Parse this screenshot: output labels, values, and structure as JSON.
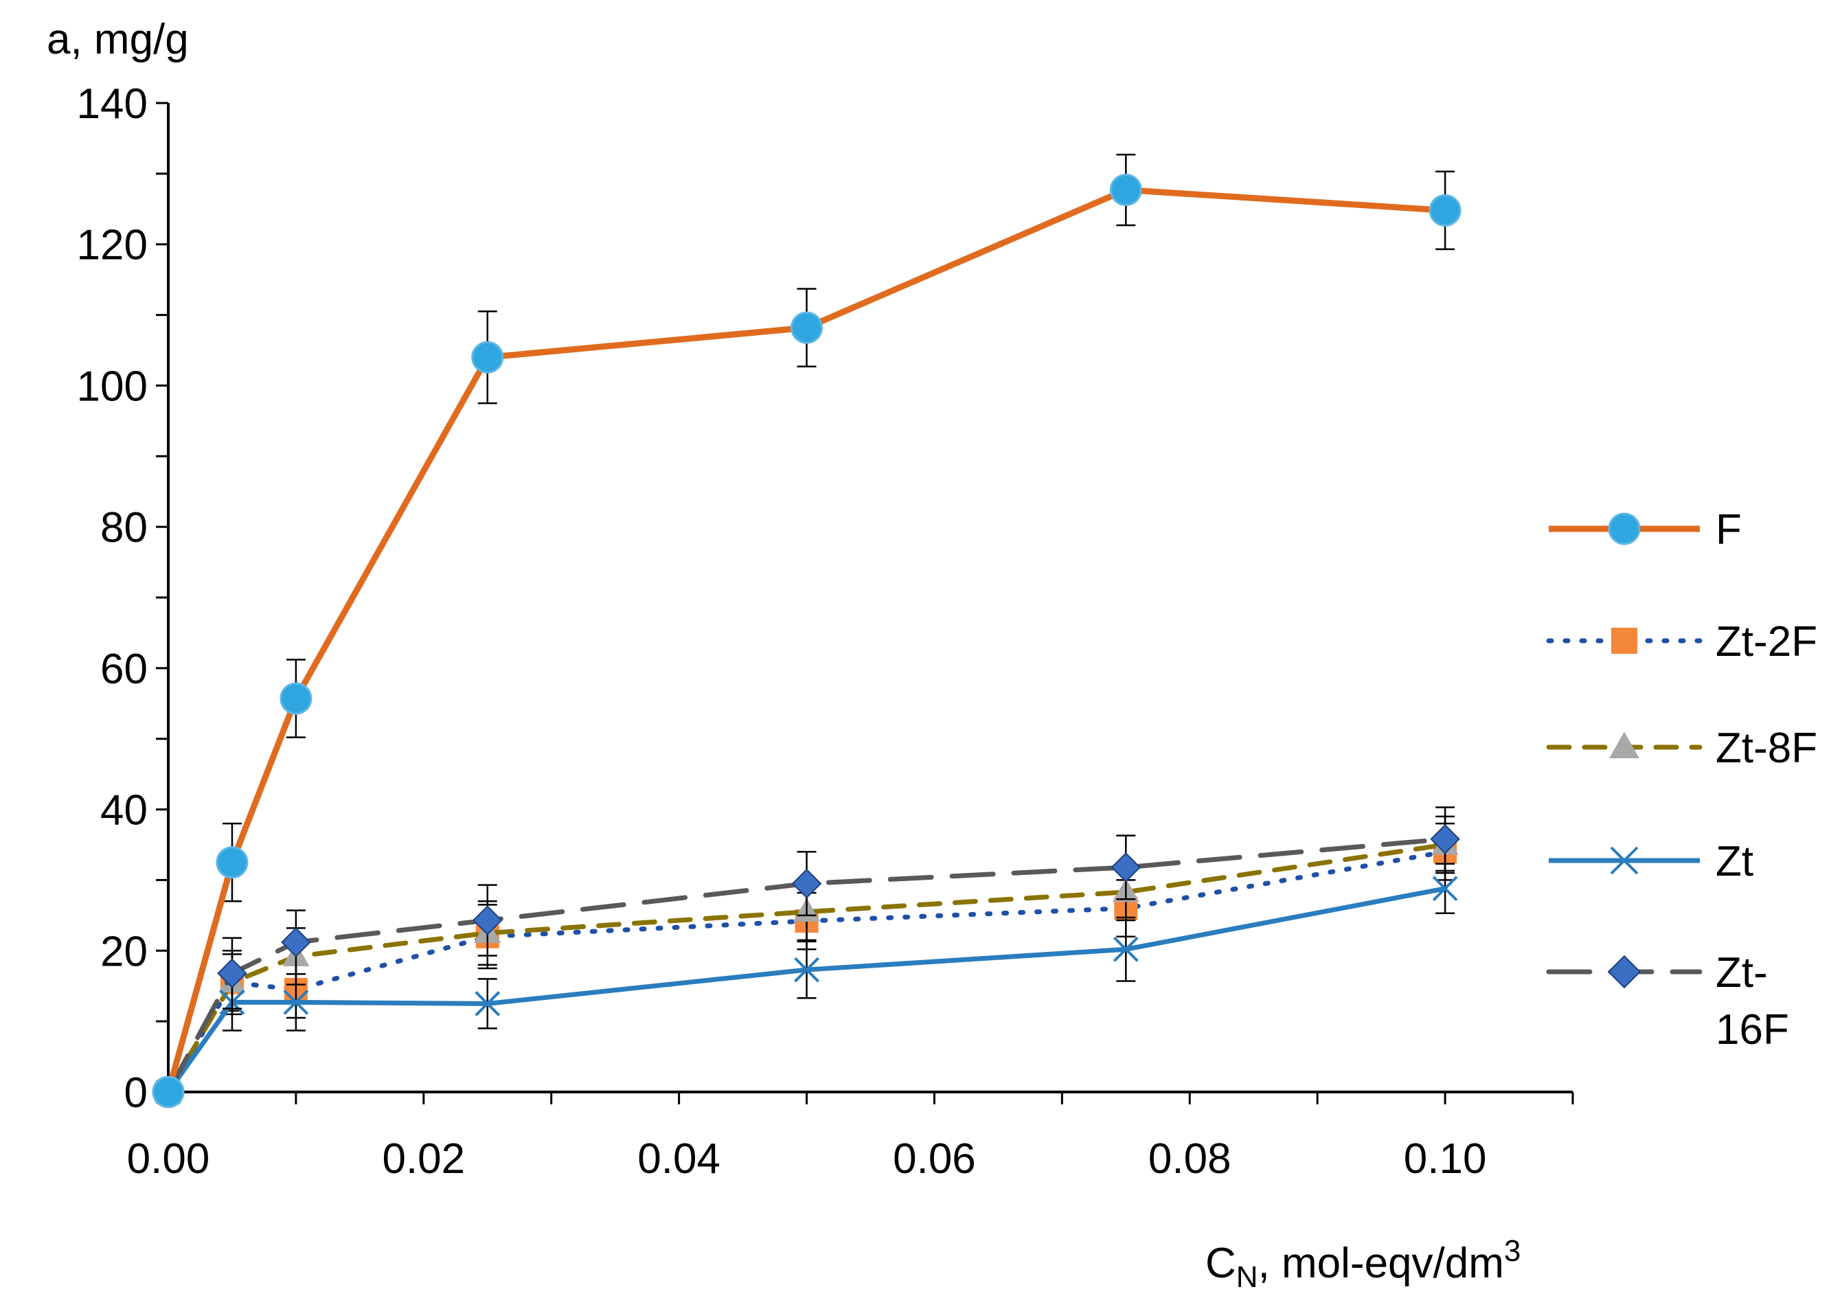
{
  "chart_data": {
    "type": "line",
    "title": "",
    "ylabel": "a, mg/g",
    "xlabel_main": "C",
    "xlabel_sub": "N",
    "xlabel_rest": ", mol-eqv/dm",
    "xlabel_sup": "3",
    "xlim": [
      0,
      0.11
    ],
    "ylim": [
      0,
      140
    ],
    "x_ticks": [
      0.0,
      0.02,
      0.04,
      0.06,
      0.08,
      0.1
    ],
    "x_tick_labels": [
      "0.00",
      "0.02",
      "0.04",
      "0.06",
      "0.08",
      "0.10"
    ],
    "y_ticks": [
      0,
      20,
      40,
      60,
      80,
      100,
      120,
      140
    ],
    "y_tick_labels": [
      "0",
      "20",
      "40",
      "60",
      "80",
      "100",
      "120",
      "140"
    ],
    "x": [
      0,
      0.005,
      0.01,
      0.025,
      0.05,
      0.075,
      0.1
    ],
    "legend_position": "right",
    "series": [
      {
        "name": "F",
        "values": [
          0,
          32.5,
          55.7,
          104,
          108.2,
          127.7,
          124.8
        ],
        "errors": [
          0,
          5.5,
          5.5,
          6.5,
          5.5,
          5,
          5.5
        ],
        "color": "#E06B1F",
        "marker": "circle",
        "marker_color": "#2FA6E0",
        "line_style": "solid"
      },
      {
        "name": "Zt-2F",
        "values": [
          0,
          15.5,
          14.5,
          22,
          24.2,
          26,
          34
        ],
        "errors": [
          0,
          4,
          4,
          4.5,
          4,
          4,
          4
        ],
        "color": "#1F4FA8",
        "marker": "square",
        "marker_color": "#F5873A",
        "line_style": "dotted"
      },
      {
        "name": "Zt-8F",
        "values": [
          0,
          15.5,
          19.2,
          22.5,
          25.5,
          28.3,
          35
        ],
        "errors": [
          0,
          4.5,
          4,
          4.5,
          4,
          4,
          4
        ],
        "color": "#8B7300",
        "marker": "triangle",
        "marker_color": "#A8A8A8",
        "line_style": "dashed"
      },
      {
        "name": "Zt",
        "values": [
          0,
          12.7,
          12.7,
          12.5,
          17.3,
          20.2,
          28.8
        ],
        "errors": [
          0,
          4,
          4,
          3.5,
          4,
          4.5,
          3.5
        ],
        "color": "#2A7DBF",
        "marker": "x",
        "marker_color": "#2A7DBF",
        "line_style": "solid"
      },
      {
        "name": "Zt-16F",
        "values": [
          0,
          16.8,
          21.2,
          24.3,
          29.5,
          31.8,
          35.8
        ],
        "errors": [
          0,
          5,
          4.5,
          5,
          4.5,
          4.5,
          4.5
        ],
        "color": "#595959",
        "marker": "diamond",
        "marker_color": "#3A6FC4",
        "line_style": "longdash"
      }
    ]
  }
}
